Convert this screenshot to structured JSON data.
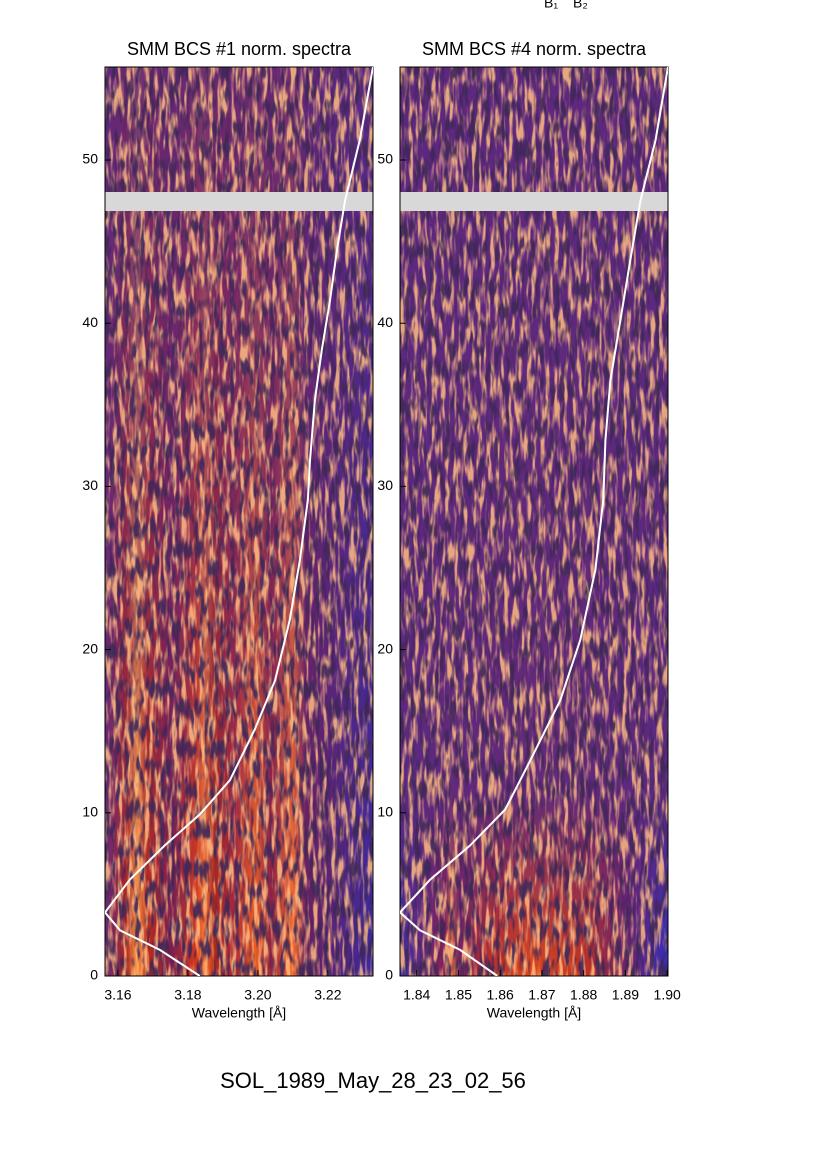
{
  "annotations": [
    "B₁",
    "B₂"
  ],
  "chart_data": [
    {
      "type": "line",
      "title": "SMM BCS #1 norm. spectra",
      "xlabel": "Wavelength [Å]",
      "xlim": [
        3.1563,
        3.2329
      ],
      "xticks": [
        3.16,
        3.18,
        {
          "value": 3.2,
          "label": "3.20"
        },
        3.22
      ],
      "ylim": [
        0,
        55.7
      ],
      "yticks": [
        0,
        10,
        20,
        30,
        40,
        50
      ],
      "series": [
        {
          "color": "#ffffff",
          "x": [
            3.1834,
            3.172,
            3.1606,
            3.1563,
            3.1634,
            3.1734,
            3.1834,
            3.192,
            3.1991,
            3.2049,
            3.2091,
            3.212,
            3.2143,
            3.2149,
            3.2163,
            3.2183,
            3.2206,
            3.2226,
            3.2249,
            3.2291,
            3.2329
          ],
          "values": [
            0,
            1.6,
            2.8,
            3.9,
            5.9,
            8.0,
            9.9,
            12.0,
            15.1,
            18.1,
            21.8,
            25.5,
            29.2,
            31.6,
            35.3,
            38.4,
            41.4,
            44.5,
            47.5,
            51.2,
            55.7
          ]
        }
      ]
    },
    {
      "type": "line",
      "title": "SMM BCS #4 norm. spectra",
      "xlabel": "Wavelength [Å]",
      "xlim": [
        1.836,
        1.9002
      ],
      "xticks": [
        1.84,
        1.85,
        1.86,
        1.87,
        1.88,
        1.89,
        {
          "value": 1.9,
          "label": "1.90"
        }
      ],
      "ylim": [
        0,
        55.7
      ],
      "yticks": [
        0,
        10,
        20,
        30,
        40,
        50
      ],
      "series": [
        {
          "color": "#ffffff",
          "x": [
            1.8593,
            1.8504,
            1.8408,
            1.836,
            1.8432,
            1.8528,
            1.8612,
            1.8672,
            1.8744,
            1.8792,
            1.8828,
            1.8847,
            1.8852,
            1.8864,
            1.8888,
            1.8912,
            1.8936,
            1.8972,
            1.9002
          ],
          "values": [
            0,
            1.6,
            2.8,
            3.9,
            5.9,
            8.0,
            10.2,
            13.2,
            16.9,
            20.6,
            24.9,
            29.2,
            32.8,
            36.5,
            40.2,
            43.9,
            47.5,
            51.2,
            55.7
          ]
        }
      ]
    }
  ],
  "footer": "SOL_1989_May_28_23_02_56"
}
